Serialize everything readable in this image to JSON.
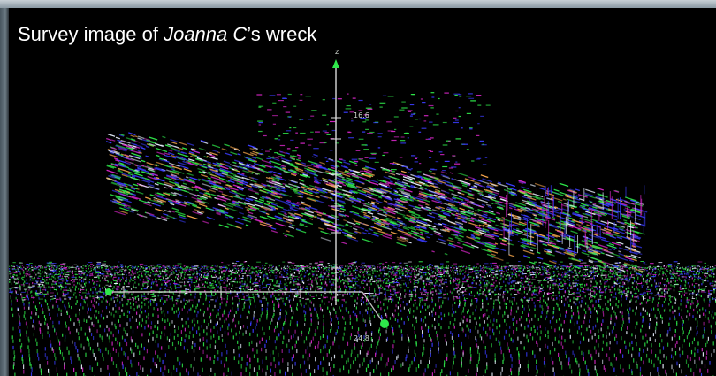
{
  "caption": {
    "prefix": "Survey image of ",
    "vessel_name": "Joanna C",
    "suffix": "’s wreck"
  },
  "viewer": {
    "axis_label_z": "z",
    "tick_label_top": "16.6",
    "tick_label_bottom": "24.8"
  },
  "colors": {
    "background": "#000000",
    "point_green": "#2ee84a",
    "point_blue": "#3a3cff",
    "point_magenta": "#d626c6",
    "point_orange": "#f0a24a",
    "point_white": "#e8f0ff",
    "axis": "#e0e0e0"
  }
}
